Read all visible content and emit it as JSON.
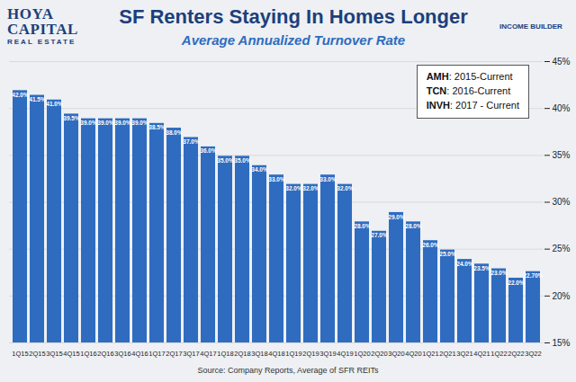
{
  "chart_data": {
    "type": "bar",
    "title": "SF Renters Staying In Homes Longer",
    "subtitle": "Average Annualized Turnover Rate",
    "categories": [
      "1Q15",
      "2Q15",
      "3Q15",
      "4Q15",
      "1Q16",
      "2Q16",
      "3Q16",
      "4Q16",
      "1Q17",
      "2Q17",
      "3Q17",
      "4Q17",
      "1Q18",
      "2Q18",
      "3Q18",
      "4Q18",
      "1Q19",
      "2Q19",
      "3Q19",
      "4Q19",
      "1Q20",
      "2Q20",
      "3Q20",
      "4Q20",
      "1Q21",
      "2Q21",
      "3Q21",
      "4Q21",
      "1Q22",
      "2Q22",
      "3Q22"
    ],
    "values": [
      42.0,
      41.5,
      41.0,
      39.5,
      39.0,
      39.0,
      39.0,
      39.0,
      38.5,
      38.0,
      37.0,
      36.0,
      35.0,
      35.0,
      34.0,
      33.0,
      32.0,
      32.0,
      33.0,
      32.0,
      28.0,
      27.0,
      29.0,
      28.0,
      26.0,
      25.0,
      24.0,
      23.5,
      23.0,
      22.0,
      22.7
    ],
    "value_labels": [
      "42.0%",
      "41.5%",
      "41.0%",
      "39.5%",
      "39.0%",
      "39.0%",
      "39.0%",
      "39.0%",
      "38.5%",
      "38.0%",
      "37.0%",
      "36.0%",
      "35.0%",
      "35.0%",
      "34.0%",
      "33.0%",
      "32.0%",
      "32.0%",
      "33.0%",
      "32.0%",
      "28.0%",
      "27.0%",
      "29.0%",
      "28.0%",
      "26.0%",
      "25.0%",
      "24.0%",
      "23.5%",
      "23.0%",
      "22.0%",
      "22.70%"
    ],
    "color": "#2f6cc0",
    "ylim": [
      15,
      45
    ],
    "yticks": [
      {
        "value": 15,
        "label": "15%"
      },
      {
        "value": 20,
        "label": "20%"
      },
      {
        "value": 25,
        "label": "25%"
      },
      {
        "value": 30,
        "label": "30%"
      },
      {
        "value": 35,
        "label": "35%"
      },
      {
        "value": 40,
        "label": "40%"
      },
      {
        "value": 45,
        "label": "45%"
      }
    ],
    "grid": true,
    "data_labels": true,
    "annotations": [
      [
        "AMH",
        ": 2015-Current"
      ],
      [
        "TCN",
        ": 2016-Current"
      ],
      [
        "INVH",
        ": 2017 - Current"
      ]
    ],
    "logos": [
      "HOYA CAPITAL",
      "REAL ESTATE",
      "INCOME BUILDER"
    ],
    "source": "Source: Company Reports, Average of SFR REITs"
  }
}
